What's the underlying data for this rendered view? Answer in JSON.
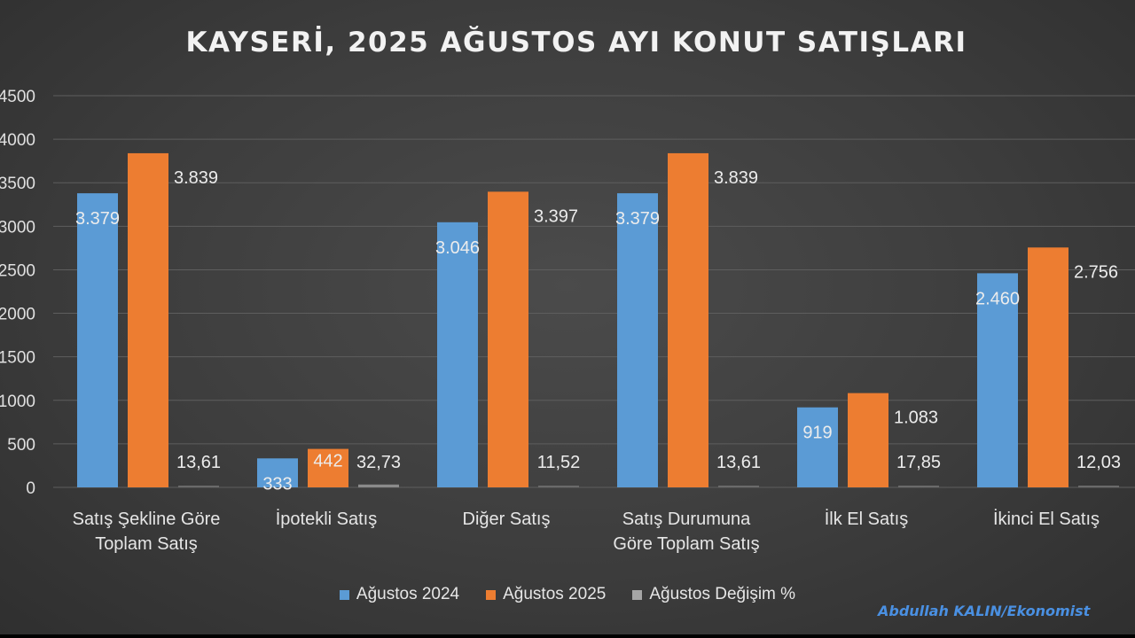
{
  "chart_data": {
    "type": "bar",
    "title": "KAYSERİ, 2025 AĞUSTOS AYI KONUT SATIŞLARI",
    "categories": [
      [
        "Satış Şekline Göre",
        "Toplam Satış"
      ],
      [
        "İpotekli Satış"
      ],
      [
        "Diğer Satış"
      ],
      [
        "Satış Durumuna",
        "Göre Toplam Satış"
      ],
      [
        "İlk El Satış"
      ],
      [
        "İkinci El Satış"
      ]
    ],
    "series": [
      {
        "name": "Ağustos 2024",
        "color": "#5b9bd5",
        "values": [
          3379,
          333,
          3046,
          3379,
          919,
          2460
        ],
        "labels": [
          "3.379",
          "333",
          "3.046",
          "3.379",
          "919",
          "2.460"
        ]
      },
      {
        "name": "Ağustos 2025",
        "color": "#ed7d31",
        "values": [
          3839,
          442,
          3397,
          3839,
          1083,
          2756
        ],
        "labels": [
          "3.839",
          "442",
          "3.397",
          "3.839",
          "1.083",
          "2.756"
        ]
      },
      {
        "name": "Ağustos Değişim %",
        "color": "#a5a5a5",
        "values": [
          13.61,
          32.73,
          11.52,
          13.61,
          17.85,
          12.03
        ],
        "labels": [
          "13,61",
          "32,73",
          "11,52",
          "13,61",
          "17,85",
          "12,03"
        ]
      }
    ],
    "ylim": [
      0,
      4500
    ],
    "yticks": [
      "0",
      "500",
      "1000",
      "1500",
      "2000",
      "2500",
      "3000",
      "3500",
      "4000",
      "4500"
    ],
    "ytick_values": [
      0,
      500,
      1000,
      1500,
      2000,
      2500,
      3000,
      3500,
      4000,
      4500
    ],
    "grid": true,
    "legend": "bottom"
  },
  "credit": "Abdullah KALIN/Ekonomist"
}
